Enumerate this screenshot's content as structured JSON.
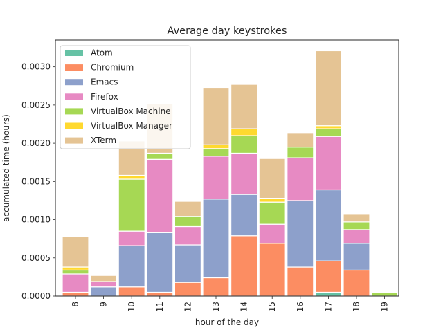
{
  "chart_data": {
    "type": "bar",
    "stacked": true,
    "title": "Average day keystrokes",
    "xlabel": "hour of the day",
    "ylabel": "accumulated time (hours)",
    "categories": [
      "8",
      "9",
      "10",
      "11",
      "12",
      "13",
      "14",
      "15",
      "16",
      "17",
      "18",
      "19"
    ],
    "ylim": [
      0,
      0.00335
    ],
    "yticks": [
      "0.0000",
      "0.0005",
      "0.0010",
      "0.0015",
      "0.0020",
      "0.0025",
      "0.0030"
    ],
    "ytick_values": [
      0,
      0.0005,
      0.001,
      0.0015,
      0.002,
      0.0025,
      0.003
    ],
    "grid": false,
    "legend_position": "top-left",
    "series": [
      {
        "name": "Atom",
        "color": "#66c2a5",
        "values": [
          0,
          0,
          0,
          0,
          0,
          0,
          0,
          0,
          0,
          5e-05,
          0,
          0
        ]
      },
      {
        "name": "Chromium",
        "color": "#fc8d62",
        "values": [
          5e-05,
          0,
          0.00012,
          5e-05,
          0.00018,
          0.00024,
          0.00079,
          0.00069,
          0.00038,
          0.00041,
          0.00034,
          0
        ]
      },
      {
        "name": "Emacs",
        "color": "#8da0cb",
        "values": [
          0,
          0.00012,
          0.00054,
          0.00078,
          0.00049,
          0.00103,
          0.00054,
          0,
          0.00087,
          0.00093,
          0.00035,
          0
        ]
      },
      {
        "name": "Firefox",
        "color": "#e78ac3",
        "values": [
          0.00024,
          7e-05,
          0.00019,
          0.00096,
          0.00024,
          0.00056,
          0.00054,
          0.00025,
          0.00056,
          0.0007,
          0.00018,
          0
        ]
      },
      {
        "name": "VirtualBox Machine",
        "color": "#a6d854",
        "values": [
          5e-05,
          0,
          0.00068,
          8e-05,
          0.00013,
          0.0001,
          0.00023,
          0.00029,
          0.00014,
          0.0001,
          0.0001,
          5e-05
        ]
      },
      {
        "name": "VirtualBox Manager",
        "color": "#ffd92f",
        "values": [
          4e-05,
          0,
          5e-05,
          0,
          0,
          5e-05,
          9e-05,
          5e-05,
          0,
          4e-05,
          0,
          0
        ]
      },
      {
        "name": "XTerm",
        "color": "#e5c494",
        "values": [
          0.0004,
          8e-05,
          0.00045,
          0.00065,
          0.0002,
          0.00075,
          0.00058,
          0.00052,
          0.00018,
          0.00098,
          0.0001,
          0
        ]
      }
    ]
  }
}
